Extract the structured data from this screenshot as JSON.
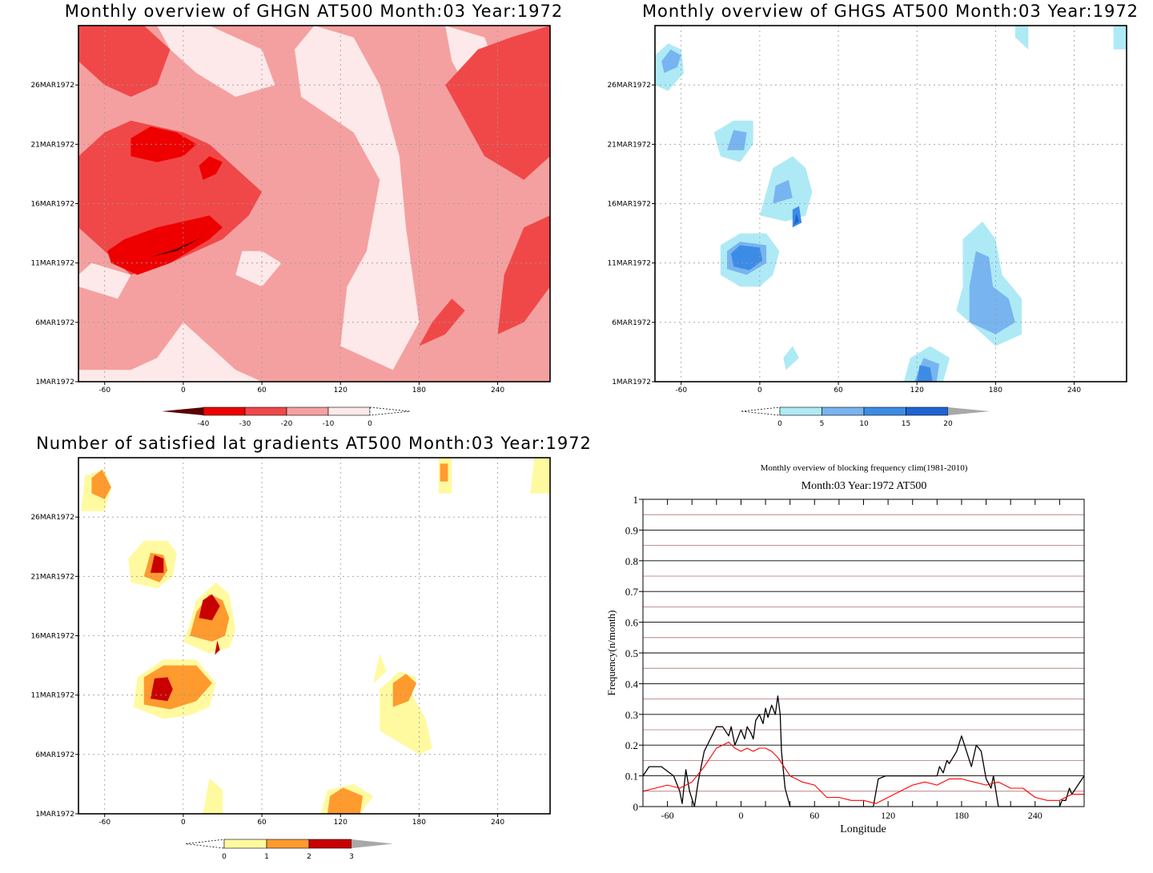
{
  "chart_data": [
    {
      "type": "heatmap",
      "title": "Monthly overview of GHGN AT500 Month:03 Year:1972",
      "x_ticks": [
        -60,
        0,
        60,
        120,
        180,
        240
      ],
      "y_ticks": [
        "1MAR1972",
        "6MAR1972",
        "11MAR1972",
        "16MAR1972",
        "21MAR1972",
        "26MAR1972"
      ],
      "xlim": [
        -80,
        280
      ],
      "colorbar": {
        "levels": [
          "-40",
          "-30",
          "-20",
          "-10",
          "0"
        ],
        "colors": [
          "#5a0000",
          "#ee0000",
          "#f04848",
          "#f5a0a0",
          "#fde9e9"
        ]
      },
      "regions": [
        {
          "x": -15,
          "y": 11.8,
          "level": "-40"
        },
        {
          "x": -10,
          "y": 11.5,
          "level": "-30"
        },
        {
          "x": -25,
          "y": 20.5,
          "level": "-30"
        },
        {
          "x": 20,
          "y": 18.5,
          "level": "-30"
        },
        {
          "x": 30,
          "y": 9,
          "level": "-20"
        },
        {
          "x": 200,
          "y": 20,
          "level": "-20"
        },
        {
          "x": 215,
          "y": 24,
          "level": "-20"
        },
        {
          "x": 90,
          "y": 6,
          "level": "-10"
        },
        {
          "x": 145,
          "y": 14,
          "level": "0"
        }
      ]
    },
    {
      "type": "heatmap",
      "title": "Monthly overview of GHGS AT500 Month:03 Year:1972",
      "x_ticks": [
        -60,
        0,
        60,
        120,
        180,
        240
      ],
      "y_ticks": [
        "1MAR1972",
        "6MAR1972",
        "11MAR1972",
        "16MAR1972",
        "21MAR1972",
        "26MAR1972"
      ],
      "xlim": [
        -80,
        280
      ],
      "colorbar": {
        "levels": [
          "0",
          "5",
          "10",
          "15",
          "20"
        ],
        "colors": [
          "#aeeaf5",
          "#78b4f0",
          "#3c8ce6",
          "#1e64d2"
        ]
      },
      "regions": [
        {
          "x": -68,
          "y": 27.5,
          "level": "5"
        },
        {
          "x": -15,
          "y": 21.5,
          "level": "5"
        },
        {
          "x": 20,
          "y": 17,
          "level": "5"
        },
        {
          "x": 30,
          "y": 14.5,
          "level": "10"
        },
        {
          "x": -15,
          "y": 11.5,
          "level": "10"
        },
        {
          "x": 175,
          "y": 9,
          "level": "10"
        },
        {
          "x": 128,
          "y": 1.5,
          "level": "10"
        }
      ]
    },
    {
      "type": "heatmap",
      "title": "Number of satisfied lat gradients AT500 Month:03 Year:1972",
      "x_ticks": [
        -60,
        0,
        60,
        120,
        180,
        240
      ],
      "y_ticks": [
        "1MAR1972",
        "6MAR1972",
        "11MAR1972",
        "16MAR1972",
        "21MAR1972",
        "26MAR1972"
      ],
      "xlim": [
        -80,
        280
      ],
      "colorbar": {
        "levels": [
          "0",
          "1",
          "2",
          "3"
        ],
        "colors": [
          "#fffaa0",
          "#ff9a2e",
          "#c80000"
        ]
      },
      "regions": [
        {
          "x": -20,
          "y": 22,
          "level": "3"
        },
        {
          "x": 20,
          "y": 18.5,
          "level": "3"
        },
        {
          "x": -15,
          "y": 11.5,
          "level": "3"
        },
        {
          "x": 25,
          "y": 15,
          "level": "2"
        },
        {
          "x": -62,
          "y": 28,
          "level": "2"
        },
        {
          "x": 170,
          "y": 11,
          "level": "2"
        },
        {
          "x": 125,
          "y": 1.5,
          "level": "2"
        },
        {
          "x": 200,
          "y": 29,
          "level": "2"
        }
      ]
    },
    {
      "type": "line",
      "title": "Monthly overview of blocking frequency clim(1981-2010)",
      "subtitle": "Month:03 Year:1972  AT500",
      "xlabel": "Longitude",
      "ylabel": "Frequency(n/month)",
      "xlim": [
        -80,
        280
      ],
      "ylim": [
        0,
        1
      ],
      "x_ticks": [
        -60,
        0,
        60,
        120,
        180,
        240
      ],
      "y_ticks": [
        "0",
        "0.1",
        "0.2",
        "0.3",
        "0.4",
        "0.5",
        "0.6",
        "0.7",
        "0.8",
        "0.9",
        "1"
      ],
      "grid": true,
      "series": [
        {
          "color": "#000000",
          "x": [
            -80,
            -75,
            -65,
            -55,
            -50,
            -48,
            -45,
            -42,
            -38,
            -35,
            -30,
            -25,
            -20,
            -15,
            -10,
            -8,
            -5,
            -2,
            0,
            3,
            5,
            8,
            10,
            12,
            15,
            18,
            20,
            22,
            25,
            28,
            30,
            32,
            33,
            36,
            40,
            44,
            48,
            52,
            56,
            60,
            70,
            80,
            90,
            100,
            108,
            112,
            118,
            125,
            130,
            140,
            150,
            160,
            162,
            165,
            168,
            170,
            173,
            176,
            180,
            184,
            188,
            192,
            196,
            200,
            204,
            206,
            210,
            240,
            250,
            255,
            260,
            262,
            265,
            268,
            270,
            275,
            280
          ],
          "y": [
            0.1,
            0.13,
            0.13,
            0.1,
            0.05,
            0.01,
            0.12,
            0.05,
            0.0,
            0.08,
            0.18,
            0.22,
            0.26,
            0.26,
            0.23,
            0.26,
            0.2,
            0.23,
            0.25,
            0.22,
            0.26,
            0.24,
            0.22,
            0.28,
            0.3,
            0.27,
            0.32,
            0.29,
            0.33,
            0.3,
            0.36,
            0.3,
            0.18,
            0.06,
            0.0,
            0.0,
            0.0,
            0.0,
            0.0,
            0.0,
            0.0,
            0.0,
            0.0,
            0.0,
            0.0,
            0.09,
            0.1,
            0.1,
            0.1,
            0.1,
            0.1,
            0.1,
            0.13,
            0.11,
            0.15,
            0.14,
            0.16,
            0.18,
            0.23,
            0.18,
            0.13,
            0.2,
            0.18,
            0.09,
            0.06,
            0.1,
            0.0,
            0.0,
            0.0,
            0.0,
            0.0,
            0.02,
            0.02,
            0.06,
            0.04,
            0.07,
            0.1
          ]
        },
        {
          "color": "#ff0000",
          "x": [
            -80,
            -70,
            -60,
            -50,
            -40,
            -30,
            -20,
            -15,
            -10,
            -5,
            0,
            5,
            10,
            15,
            20,
            25,
            30,
            35,
            40,
            50,
            60,
            70,
            80,
            90,
            100,
            110,
            120,
            130,
            140,
            150,
            160,
            170,
            180,
            190,
            200,
            210,
            220,
            230,
            240,
            250,
            260,
            270,
            280
          ],
          "y": [
            0.05,
            0.06,
            0.07,
            0.06,
            0.08,
            0.13,
            0.19,
            0.2,
            0.21,
            0.19,
            0.18,
            0.19,
            0.18,
            0.19,
            0.19,
            0.18,
            0.16,
            0.13,
            0.1,
            0.08,
            0.07,
            0.03,
            0.03,
            0.02,
            0.02,
            0.01,
            0.03,
            0.05,
            0.07,
            0.08,
            0.07,
            0.09,
            0.09,
            0.08,
            0.07,
            0.08,
            0.06,
            0.06,
            0.03,
            0.02,
            0.02,
            0.04,
            0.04
          ]
        }
      ]
    }
  ]
}
